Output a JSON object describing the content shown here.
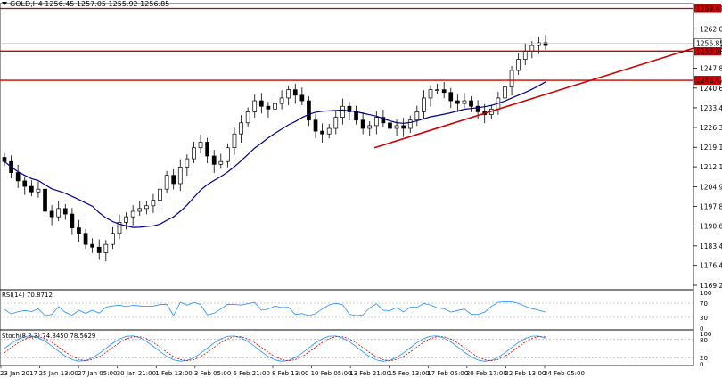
{
  "header": {
    "title": "GOLD,H4  1256.45 1257.05 1255.92 1256.85"
  },
  "main_panel": {
    "price_ticks": [
      "1262.05",
      "1254.85",
      "1247.80",
      "1240.60",
      "1233.45",
      "1226.35",
      "1219.15",
      "1212.10",
      "1204.90",
      "1197.80",
      "1190.65",
      "1183.45",
      "1176.40",
      "1169.20"
    ],
    "horizontal_levels": [
      {
        "label": "1269.41",
        "value": 1269.41
      },
      {
        "label": "1253.98",
        "value": 1253.98
      },
      {
        "label": "1243.42",
        "value": 1243.42
      }
    ],
    "current_price_label": "1256.85",
    "current_price": 1256.85
  },
  "rsi_panel": {
    "title": "RSI(14) 70.8712",
    "ticks": [
      "100",
      "70",
      "30",
      "0"
    ],
    "levels": [
      70,
      30
    ]
  },
  "stoch_panel": {
    "title": "Stoch(8,3,3) 74.8450 78.5629",
    "ticks": [
      "100",
      "80",
      "20",
      "0"
    ],
    "levels": [
      80,
      20
    ]
  },
  "x_axis": {
    "labels": [
      "23 Jan 2017",
      "25 Jan 13:00",
      "27 Jan 05:00",
      "30 Jan 21:00",
      "1 Feb 13:00",
      "3 Feb 05:00",
      "6 Feb 21:00",
      "8 Feb 13:00",
      "10 Feb 05:00",
      "13 Feb 21:00",
      "15 Feb 13:00",
      "17 Feb 05:00",
      "20 Feb 17:00",
      "22 Feb 13:00",
      "24 Feb 05:00"
    ]
  },
  "colors": {
    "resistance": "#cc0000",
    "trendline": "#cc0000",
    "moving_average": "#00008b",
    "rsi_line": "#1e90ff",
    "stoch_main": "#1e90ff",
    "stoch_signal": "#cc0000",
    "candles": "#000000"
  },
  "chart_data": {
    "type": "candlestick",
    "symbol": "GOLD",
    "timeframe": "H4",
    "ohlc_last": {
      "open": 1256.45,
      "high": 1257.05,
      "low": 1255.92,
      "close": 1256.85
    },
    "closes": [
      1214,
      1210,
      1207,
      1205,
      1203,
      1204,
      1196,
      1194,
      1197,
      1195,
      1190,
      1188,
      1184,
      1183,
      1181,
      1184,
      1188,
      1192,
      1194,
      1196,
      1197,
      1198,
      1200,
      1204,
      1209,
      1206,
      1212,
      1215,
      1219,
      1221,
      1216,
      1213,
      1214,
      1219,
      1224,
      1228,
      1232,
      1236,
      1234,
      1233,
      1235,
      1237,
      1240,
      1238,
      1236,
      1229,
      1225,
      1224,
      1226,
      1230,
      1234,
      1232,
      1229,
      1226,
      1227,
      1230,
      1228,
      1226,
      1227,
      1226,
      1229,
      1232,
      1237,
      1240,
      1240,
      1239,
      1236,
      1235,
      1236,
      1234,
      1232,
      1231,
      1233,
      1237,
      1241,
      1247,
      1251,
      1254,
      1256,
      1257,
      1256
    ],
    "moving_average": {
      "start": 1206,
      "end": 1241
    },
    "trendline": {
      "from": 1219,
      "to": 1255
    },
    "rsi_last": 70.8712,
    "stoch_last": {
      "main": 74.845,
      "signal": 78.5629
    }
  }
}
